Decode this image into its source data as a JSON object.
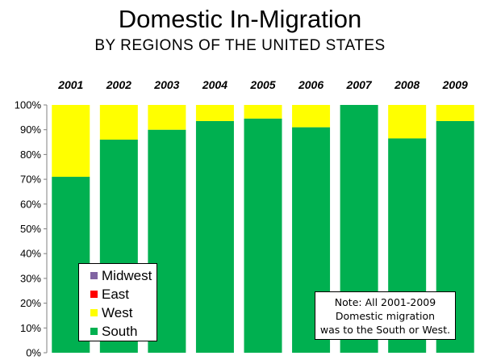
{
  "title": "Domestic In-Migration",
  "subtitle": "BY REGIONS OF THE UNITED STATES",
  "note": [
    "Note: All  2001-2009",
    "Domestic migration",
    "was to the South or West."
  ],
  "chart_data": {
    "type": "bar",
    "stacked": true,
    "categories": [
      "2001",
      "2002",
      "2003",
      "2004",
      "2005",
      "2006",
      "2007",
      "2008",
      "2009"
    ],
    "series": [
      {
        "name": "South",
        "color": "#00b050",
        "values": [
          71,
          86,
          90,
          93.5,
          94.5,
          91,
          100,
          86.5,
          93.5
        ]
      },
      {
        "name": "West",
        "color": "#ffff00",
        "values": [
          29,
          14,
          10,
          6.5,
          5.5,
          9,
          0,
          13.5,
          6.5
        ]
      },
      {
        "name": "East",
        "color": "#ff0000",
        "values": [
          0,
          0,
          0,
          0,
          0,
          0,
          0,
          0,
          0
        ]
      },
      {
        "name": "Midwest",
        "color": "#8064a2",
        "values": [
          0,
          0,
          0,
          0,
          0,
          0,
          0,
          0,
          0
        ]
      }
    ],
    "legend_order": [
      "Midwest",
      "East",
      "West",
      "South"
    ],
    "y_ticks": [
      "0%",
      "10%",
      "20%",
      "30%",
      "40%",
      "50%",
      "60%",
      "70%",
      "80%",
      "90%",
      "100%"
    ],
    "ylim": [
      0,
      100
    ],
    "grid": false,
    "legend_position": "bottom-left"
  }
}
